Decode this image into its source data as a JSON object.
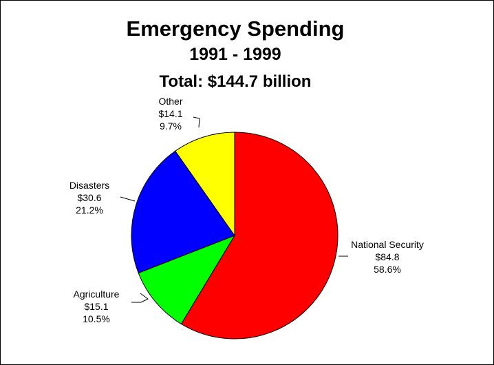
{
  "chart_data": {
    "type": "pie",
    "title": "Emergency Spending",
    "subtitle": "1991 - 1999",
    "total_label": "Total:  $144.7 billion",
    "slices": [
      {
        "label": "National Security",
        "value": 84.8,
        "value_label": "$84.8",
        "percent_label": "58.6%",
        "color": "#ff0000"
      },
      {
        "label": "Agriculture",
        "value": 15.1,
        "value_label": "$15.1",
        "percent_label": "10.5%",
        "color": "#00ff00"
      },
      {
        "label": "Disasters",
        "value": 30.6,
        "value_label": "$30.6",
        "percent_label": "21.2%",
        "color": "#0000ff"
      },
      {
        "label": "Other",
        "value": 14.1,
        "value_label": "$14.1",
        "percent_label": "9.7%",
        "color": "#ffff00"
      }
    ],
    "start_angle": "12 o'clock",
    "direction": "clockwise",
    "legend": "none"
  }
}
